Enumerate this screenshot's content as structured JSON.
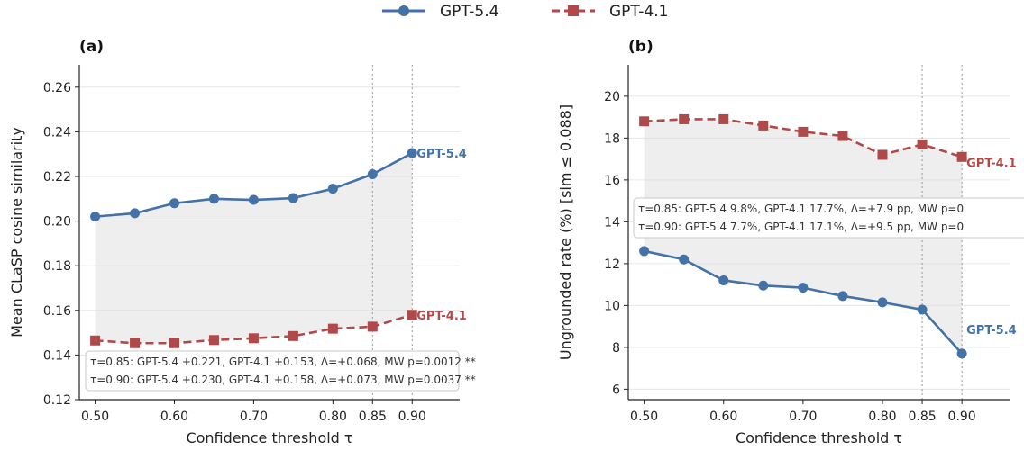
{
  "legend": {
    "placement": "top-center",
    "items": [
      {
        "name": "GPT-5.4",
        "color": "#4472a6",
        "style": "solid",
        "marker": "circle"
      },
      {
        "name": "GPT-4.1",
        "color": "#b04a4a",
        "style": "dashed",
        "marker": "square"
      }
    ]
  },
  "chart_data": [
    {
      "type": "line",
      "panel": "(a)",
      "xlabel": "Confidence threshold  τ",
      "ylabel": "Mean CLaSP cosine similarity",
      "x": [
        0.5,
        0.55,
        0.6,
        0.65,
        0.7,
        0.75,
        0.8,
        0.85,
        0.9
      ],
      "xlim": [
        0.48,
        0.96
      ],
      "ylim": [
        0.12,
        0.27
      ],
      "xticks": [
        0.5,
        0.6,
        0.7,
        0.8,
        0.85,
        0.9
      ],
      "xtick_labels": [
        "0.50",
        "0.60",
        "0.70",
        "0.80",
        "0.85",
        "0.90"
      ],
      "yticks": [
        0.12,
        0.14,
        0.16,
        0.18,
        0.2,
        0.22,
        0.24,
        0.26
      ],
      "ytick_labels": [
        "0.12",
        "0.14",
        "0.16",
        "0.18",
        "0.20",
        "0.22",
        "0.24",
        "0.26"
      ],
      "vlines": [
        0.85,
        0.9
      ],
      "shade_between_series": true,
      "grid": "horizontal",
      "series": [
        {
          "name": "GPT-5.4",
          "end_label": "GPT-5.4",
          "color": "#4472a6",
          "style": "solid",
          "marker": "circle",
          "values": [
            0.202,
            0.2035,
            0.208,
            0.21,
            0.2095,
            0.2103,
            0.2145,
            0.221,
            0.2305
          ]
        },
        {
          "name": "GPT-4.1",
          "end_label": "GPT-4.1",
          "color": "#b04a4a",
          "style": "dashed",
          "marker": "square",
          "values": [
            0.1465,
            0.1453,
            0.1453,
            0.1467,
            0.1475,
            0.1485,
            0.1518,
            0.1527,
            0.158
          ]
        }
      ],
      "annotation_lines": [
        "τ=0.85:  GPT-5.4 +0.221,  GPT-4.1 +0.153,  Δ=+0.068,  MW p=0.0012 **",
        "τ=0.90:  GPT-5.4 +0.230,  GPT-4.1 +0.158,  Δ=+0.073,  MW p=0.0037 **"
      ]
    },
    {
      "type": "line",
      "panel": "(b)",
      "xlabel": "Confidence threshold  τ",
      "ylabel": "Ungrounded rate (%)  [sim ≤ 0.088]",
      "x": [
        0.5,
        0.55,
        0.6,
        0.65,
        0.7,
        0.75,
        0.8,
        0.85,
        0.9
      ],
      "xlim": [
        0.48,
        0.96
      ],
      "ylim": [
        5.5,
        21.5
      ],
      "xticks": [
        0.5,
        0.6,
        0.7,
        0.8,
        0.85,
        0.9
      ],
      "xtick_labels": [
        "0.50",
        "0.60",
        "0.70",
        "0.80",
        "0.85",
        "0.90"
      ],
      "yticks": [
        6,
        8,
        10,
        12,
        14,
        16,
        18,
        20
      ],
      "ytick_labels": [
        "6",
        "8",
        "10",
        "12",
        "14",
        "16",
        "18",
        "20"
      ],
      "vlines": [
        0.85,
        0.9
      ],
      "shade_between_series": true,
      "grid": "horizontal",
      "series": [
        {
          "name": "GPT-5.4",
          "end_label": "GPT-5.4",
          "color": "#4472a6",
          "style": "solid",
          "marker": "circle",
          "values": [
            12.6,
            12.2,
            11.2,
            10.95,
            10.85,
            10.45,
            10.15,
            9.8,
            7.7
          ]
        },
        {
          "name": "GPT-4.1",
          "end_label": "GPT-4.1",
          "color": "#b04a4a",
          "style": "dashed",
          "marker": "square",
          "values": [
            18.8,
            18.9,
            18.9,
            18.6,
            18.3,
            18.1,
            17.2,
            17.7,
            17.1
          ]
        }
      ],
      "annotation_lines": [
        "τ=0.85:  GPT-5.4 9.8%,  GPT-4.1 17.7%,  Δ=+7.9 pp,  MW p=0",
        "τ=0.90:  GPT-5.4 7.7%,  GPT-4.1 17.1%,  Δ=+9.5 pp,  MW p=0"
      ]
    }
  ]
}
